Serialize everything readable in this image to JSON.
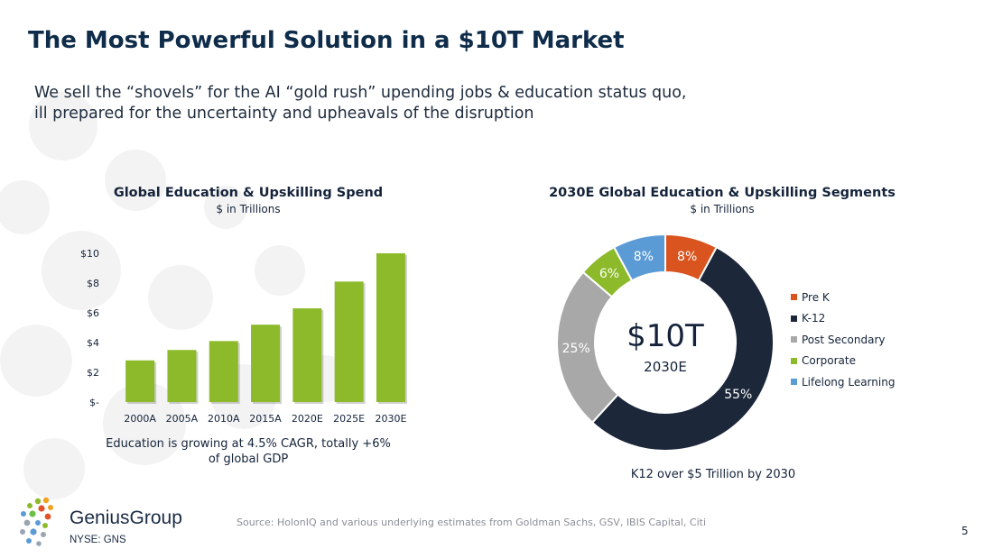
{
  "slide": {
    "title": "The Most Powerful Solution in a $10T Market",
    "subtitle_line1": "We sell the “shovels” for the AI “gold rush” upending jobs & education status quo,",
    "subtitle_line2": "ill prepared for the uncertainty and upheavals of the disruption",
    "source": "Source: HolonIQ and various underlying estimates from Goldman Sachs, GSV, IBIS Capital, Citi",
    "page_number": "5"
  },
  "logo": {
    "name": "GeniusGroup",
    "ticker": "NYSE: GNS"
  },
  "colors": {
    "title": "#0f2d4a",
    "bar_green": "#8cba2a",
    "pre_k": "#d9541e",
    "k12": "#1c273a",
    "post_secondary": "#a8a8a8",
    "corporate": "#8cba2a",
    "lifelong": "#5b9bd5"
  },
  "chart_data": [
    {
      "type": "bar",
      "title": "Global Education & Upskilling Spend",
      "subtitle": "$ in Trillions",
      "categories": [
        "2000A",
        "2005A",
        "2010A",
        "2015A",
        "2020E",
        "2025E",
        "2030E"
      ],
      "values": [
        2.8,
        3.5,
        4.1,
        5.2,
        6.3,
        8.1,
        10.0
      ],
      "ylim": [
        0,
        10
      ],
      "yticks": [
        0,
        2,
        4,
        6,
        8,
        10
      ],
      "ytick_labels": [
        "$-",
        "$2",
        "$4",
        "$6",
        "$8",
        "$10"
      ],
      "grid": false,
      "caption_line1": "Education is growing at 4.5% CAGR, totally +6%",
      "caption_line2": "of global GDP"
    },
    {
      "type": "pie",
      "title": "2030E Global Education & Upskilling Segments",
      "subtitle": "$ in Trillions",
      "center_value": "$10T",
      "center_label": "2030E",
      "segments": [
        {
          "name": "Pre K",
          "value": 8,
          "label": "8%",
          "color": "#d9541e"
        },
        {
          "name": "K-12",
          "value": 55,
          "label": "55%",
          "color": "#1c273a"
        },
        {
          "name": "Post Secondary",
          "value": 25,
          "label": "25%",
          "color": "#a8a8a8"
        },
        {
          "name": "Corporate",
          "value": 6,
          "label": "6%",
          "color": "#8cba2a"
        },
        {
          "name": "Lifelong Learning",
          "value": 8,
          "label": "8%",
          "color": "#5b9bd5"
        }
      ],
      "legend_position": "right",
      "caption": "K12 over $5 Trillion by 2030"
    }
  ]
}
